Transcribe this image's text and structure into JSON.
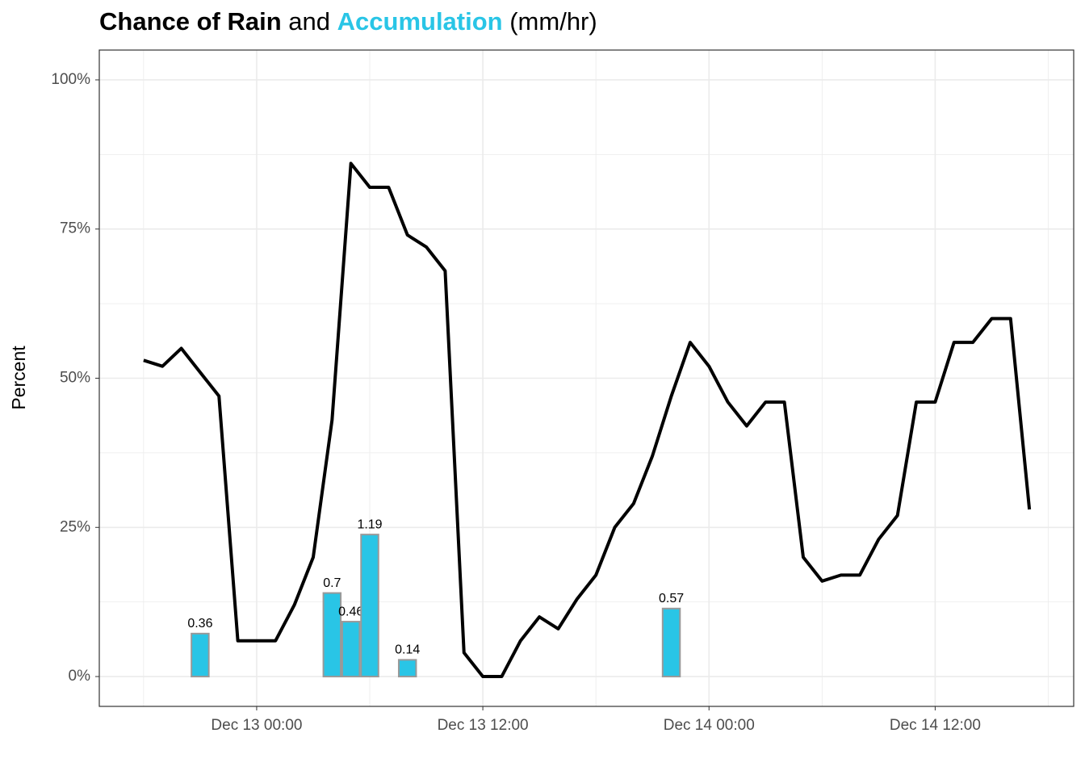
{
  "chart_data": {
    "type": "line",
    "title": [
      "Chance of Rain",
      "and",
      "Accumulation",
      "(mm/hr)"
    ],
    "ylabel": "Percent",
    "ylim": [
      -5,
      105
    ],
    "yticks": [
      {
        "value": 0,
        "label": "0%"
      },
      {
        "value": 25,
        "label": "25%"
      },
      {
        "value": 50,
        "label": "50%"
      },
      {
        "value": 75,
        "label": "75%"
      },
      {
        "value": 100,
        "label": "100%"
      }
    ],
    "y2lim": [
      -0.25,
      5.25
    ],
    "xlim": [
      "Dec 12 15:39",
      "Dec 14 19:21"
    ],
    "xticks": [
      "Dec 13 00:00",
      "Dec 13 12:00",
      "Dec 14 00:00",
      "Dec 14 12:00"
    ],
    "grid": true,
    "series": [
      {
        "type": "line",
        "color": "#000000",
        "x": [
          "Dec 12 18:00",
          "Dec 12 19:00",
          "Dec 12 20:00",
          "Dec 12 21:00",
          "Dec 12 22:00",
          "Dec 12 23:00",
          "Dec 13 00:00",
          "Dec 13 01:00",
          "Dec 13 02:00",
          "Dec 13 03:00",
          "Dec 13 04:00",
          "Dec 13 05:00",
          "Dec 13 06:00",
          "Dec 13 07:00",
          "Dec 13 08:00",
          "Dec 13 09:00",
          "Dec 13 10:00",
          "Dec 13 11:00",
          "Dec 13 12:00",
          "Dec 13 13:00",
          "Dec 13 14:00",
          "Dec 13 15:00",
          "Dec 13 16:00",
          "Dec 13 17:00",
          "Dec 13 18:00",
          "Dec 13 19:00",
          "Dec 13 20:00",
          "Dec 13 21:00",
          "Dec 13 22:00",
          "Dec 13 23:00",
          "Dec 14 00:00",
          "Dec 14 01:00",
          "Dec 14 02:00",
          "Dec 14 03:00",
          "Dec 14 04:00",
          "Dec 14 05:00",
          "Dec 14 06:00",
          "Dec 14 07:00",
          "Dec 14 08:00",
          "Dec 14 09:00",
          "Dec 14 10:00",
          "Dec 14 11:00",
          "Dec 14 12:00",
          "Dec 14 13:00",
          "Dec 14 14:00",
          "Dec 14 15:00",
          "Dec 14 16:00",
          "Dec 14 17:00"
        ],
        "values": [
          53,
          52,
          55,
          51,
          47,
          6,
          6,
          6,
          12,
          20,
          43,
          86,
          82,
          82,
          74,
          72,
          68,
          4,
          0,
          0,
          6,
          10,
          8,
          13,
          17,
          25,
          29,
          37,
          47,
          56,
          52,
          46,
          42,
          46,
          46,
          20,
          16,
          17,
          17,
          23,
          27,
          46,
          46,
          56,
          56,
          60,
          60,
          28
        ]
      },
      {
        "type": "bar",
        "axis": "y2",
        "color": "#29c5e6",
        "x": [
          "Dec 12 21:00",
          "Dec 13 04:00",
          "Dec 13 05:00",
          "Dec 13 06:00",
          "Dec 13 08:00",
          "Dec 13 22:00"
        ],
        "values": [
          0.36,
          0.7,
          0.46,
          1.19,
          0.14,
          0.57
        ]
      }
    ]
  }
}
